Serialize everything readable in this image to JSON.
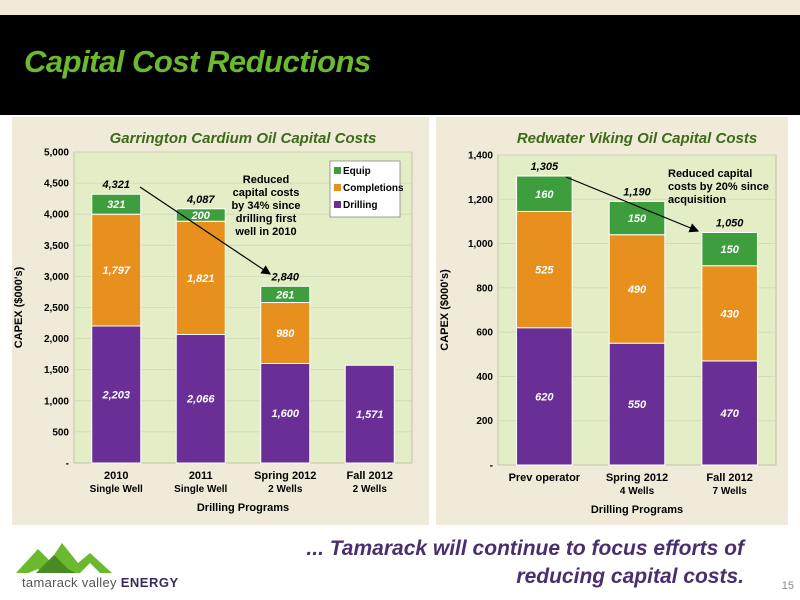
{
  "slide": {
    "title": "Capital Cost Reductions",
    "footer_line1": "... Tamarack will continue to focus efforts of",
    "footer_line2": "reducing capital costs.",
    "page_number": "15",
    "logo_text_main": "tamarack valley",
    "logo_text_bold": "ENERGY",
    "colors": {
      "header_bg": "#000000",
      "title": "#6ab92e",
      "panel_bg": "#f0ebd8",
      "footer_text": "#4a2f6e"
    }
  },
  "chart_data": [
    {
      "type": "bar",
      "stacked": true,
      "title": "Garrington Cardium Oil Capital Costs",
      "xlabel": "Drilling Programs",
      "ylabel": "CAPEX ($000's)",
      "ylim": [
        0,
        5000
      ],
      "yticks": [
        "-",
        "500",
        "1,000",
        "1,500",
        "2,000",
        "2,500",
        "3,000",
        "3,500",
        "4,000",
        "4,500",
        "5,000"
      ],
      "categories": [
        {
          "line1": "2010",
          "line2": "Single Well"
        },
        {
          "line1": "2011",
          "line2": "Single Well"
        },
        {
          "line1": "Spring 2012",
          "line2": "2 Wells"
        },
        {
          "line1": "Fall 2012",
          "line2": "2 Wells"
        }
      ],
      "series": [
        {
          "name": "Drilling",
          "color": "#6a2f97",
          "values": [
            2203,
            2066,
            1600,
            1571
          ],
          "labels": [
            "2,203",
            "2,066",
            "1,600",
            "1,571"
          ]
        },
        {
          "name": "Completions",
          "color": "#e8901e",
          "values": [
            1797,
            1821,
            980,
            0
          ],
          "labels": [
            "1,797",
            "1,821",
            "980",
            ""
          ]
        },
        {
          "name": "Equip",
          "color": "#3e9e3e",
          "values": [
            321,
            200,
            261,
            0
          ],
          "labels": [
            "321",
            "200",
            "261",
            ""
          ]
        }
      ],
      "totals": [
        "4,321",
        "4,087",
        "2,840",
        ""
      ],
      "legend": [
        "Equip",
        "Completions",
        "Drilling"
      ],
      "legend_placement": "top-right",
      "annotation": "Reduced capital costs by 34% since drilling first well in 2010"
    },
    {
      "type": "bar",
      "stacked": true,
      "title": "Redwater Viking Oil Capital Costs",
      "xlabel": "Drilling Programs",
      "ylabel": "CAPEX ($000's)",
      "ylim": [
        0,
        1400
      ],
      "yticks": [
        "-",
        "200",
        "400",
        "600",
        "800",
        "1,000",
        "1,200",
        "1,400"
      ],
      "categories": [
        {
          "line1": "Prev operator",
          "line2": ""
        },
        {
          "line1": "Spring 2012",
          "line2": "4 Wells"
        },
        {
          "line1": "Fall 2012",
          "line2": "7 Wells"
        }
      ],
      "series": [
        {
          "name": "Drilling",
          "color": "#6a2f97",
          "values": [
            620,
            550,
            470
          ],
          "labels": [
            "620",
            "550",
            "470"
          ]
        },
        {
          "name": "Completions",
          "color": "#e8901e",
          "values": [
            525,
            490,
            430
          ],
          "labels": [
            "525",
            "490",
            "430"
          ]
        },
        {
          "name": "Equip",
          "color": "#3e9e3e",
          "values": [
            160,
            150,
            150
          ],
          "labels": [
            "160",
            "150",
            "150"
          ]
        }
      ],
      "totals": [
        "1,305",
        "1,190",
        "1,050"
      ],
      "annotation": "Reduced capital costs by 20% since acquisition"
    }
  ]
}
